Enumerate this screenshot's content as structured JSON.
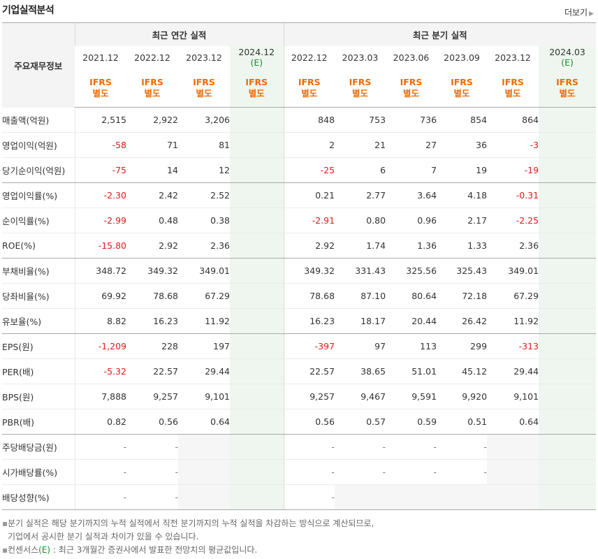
{
  "header": {
    "title": "기업실적분석",
    "more_label": "더보기"
  },
  "table": {
    "row_header_label": "주요재무정보",
    "annual_group": "최근 연간 실적",
    "quarter_group": "최근 분기 실적",
    "annual_periods": [
      "2021.12",
      "2022.12",
      "2023.12",
      "2024.12"
    ],
    "quarter_periods": [
      "2022.12",
      "2023.03",
      "2023.06",
      "2023.09",
      "2023.12",
      "2024.03"
    ],
    "estimate_mark": "(E)",
    "standard_label_top": "IFRS",
    "standard_label_bottom": "별도",
    "rows": [
      {
        "label": "매출액(억원)",
        "annual": [
          "2,515",
          "2,922",
          "3,206",
          ""
        ],
        "quarter": [
          "848",
          "753",
          "736",
          "854",
          "864",
          ""
        ]
      },
      {
        "label": "영업이익(억원)",
        "annual": [
          "-58",
          "71",
          "81",
          ""
        ],
        "quarter": [
          "2",
          "21",
          "27",
          "36",
          "-3",
          ""
        ]
      },
      {
        "label": "당기순이익(억원)",
        "annual": [
          "-75",
          "14",
          "12",
          ""
        ],
        "quarter": [
          "-25",
          "6",
          "7",
          "19",
          "-19",
          ""
        ]
      },
      {
        "label": "영업이익률(%)",
        "annual": [
          "-2.30",
          "2.42",
          "2.52",
          ""
        ],
        "quarter": [
          "0.21",
          "2.77",
          "3.64",
          "4.18",
          "-0.31",
          ""
        ]
      },
      {
        "label": "순이익률(%)",
        "annual": [
          "-2.99",
          "0.48",
          "0.38",
          ""
        ],
        "quarter": [
          "-2.91",
          "0.80",
          "0.96",
          "2.17",
          "-2.25",
          ""
        ]
      },
      {
        "label": "ROE(%)",
        "annual": [
          "-15.80",
          "2.92",
          "2.36",
          ""
        ],
        "quarter": [
          "2.92",
          "1.74",
          "1.36",
          "1.33",
          "2.36",
          ""
        ]
      },
      {
        "label": "부채비율(%)",
        "annual": [
          "348.72",
          "349.32",
          "349.01",
          ""
        ],
        "quarter": [
          "349.32",
          "331.43",
          "325.56",
          "325.43",
          "349.01",
          ""
        ]
      },
      {
        "label": "당좌비율(%)",
        "annual": [
          "69.92",
          "78.68",
          "67.29",
          ""
        ],
        "quarter": [
          "78.68",
          "87.10",
          "80.64",
          "72.18",
          "67.29",
          ""
        ]
      },
      {
        "label": "유보율(%)",
        "annual": [
          "8.82",
          "16.23",
          "11.92",
          ""
        ],
        "quarter": [
          "16.23",
          "18.17",
          "20.44",
          "26.42",
          "11.92",
          ""
        ]
      },
      {
        "label": "EPS(원)",
        "annual": [
          "-1,209",
          "228",
          "197",
          ""
        ],
        "quarter": [
          "-397",
          "97",
          "113",
          "299",
          "-313",
          ""
        ]
      },
      {
        "label": "PER(배)",
        "annual": [
          "-5.32",
          "22.57",
          "29.44",
          ""
        ],
        "quarter": [
          "22.57",
          "38.65",
          "51.01",
          "45.12",
          "29.44",
          ""
        ]
      },
      {
        "label": "BPS(원)",
        "annual": [
          "7,888",
          "9,257",
          "9,101",
          ""
        ],
        "quarter": [
          "9,257",
          "9,467",
          "9,591",
          "9,920",
          "9,101",
          ""
        ]
      },
      {
        "label": "PBR(배)",
        "annual": [
          "0.82",
          "0.56",
          "0.64",
          ""
        ],
        "quarter": [
          "0.56",
          "0.57",
          "0.59",
          "0.51",
          "0.64",
          ""
        ]
      },
      {
        "label": "주당배당금(원)",
        "annual": [
          "-",
          "-",
          "",
          ""
        ],
        "quarter": [
          "-",
          "-",
          "-",
          "-",
          "",
          ""
        ]
      },
      {
        "label": "시가배당률(%)",
        "annual": [
          "-",
          "-",
          "",
          ""
        ],
        "quarter": [
          "-",
          "-",
          "-",
          "-",
          "",
          ""
        ]
      },
      {
        "label": "배당성향(%)",
        "annual": [
          "-",
          "-",
          "",
          ""
        ],
        "quarter": [
          "-",
          "",
          "",
          "",
          "",
          ""
        ]
      }
    ]
  },
  "notes": {
    "line1": "분기 실적은 해당 분기까지의 누적 실적에서 직전 분기까지의 누적 실적을 차감하는 방식으로 계산되므로,",
    "line2": "기업에서 공시한 분기 실적과 차이가 있을 수 있습니다.",
    "line3_prefix": "컨센서스",
    "line3_mark": "(E)",
    "line3_suffix": " : 최근 3개월간 증권사에서 발표한 전망치의 평균값입니다."
  },
  "colors": {
    "negative": "#e01a1a",
    "standard_label": "#ec6b09",
    "estimate": "#1b8a32",
    "estimate_bg": "#eef6ef"
  }
}
